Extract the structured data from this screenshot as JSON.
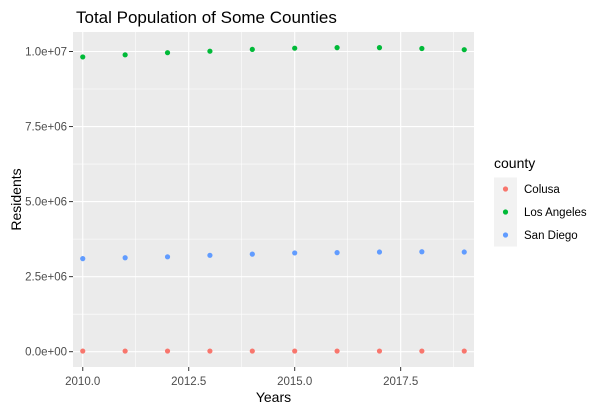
{
  "chart_data": {
    "type": "scatter",
    "title": "Total Population of Some Counties",
    "xlabel": "Years",
    "ylabel": "Residents",
    "xlim": [
      2009.77,
      2019.23
    ],
    "ylim": [
      -510000,
      10650000
    ],
    "x_ticks": [
      2010,
      2012.5,
      2015,
      2017.5
    ],
    "x_tick_labels": [
      "2010.0",
      "2012.5",
      "2015.0",
      "2017.5"
    ],
    "y_ticks": [
      0,
      2500000,
      5000000,
      7500000,
      10000000
    ],
    "y_tick_labels": [
      "0.0e+00",
      "2.5e+06",
      "5.0e+06",
      "7.5e+06",
      "1.0e+07"
    ],
    "grid": true,
    "legend_title": "county",
    "legend_position": "right",
    "x": [
      2010,
      2011,
      2012,
      2013,
      2014,
      2015,
      2016,
      2017,
      2018,
      2019
    ],
    "series": [
      {
        "name": "Colusa",
        "color": "#F8766D",
        "values": [
          21500,
          21400,
          21500,
          21400,
          21400,
          21500,
          21600,
          21600,
          21500,
          21500
        ]
      },
      {
        "name": "Los Angeles",
        "color": "#00BA38",
        "values": [
          9820000,
          9890000,
          9960000,
          10010000,
          10070000,
          10110000,
          10130000,
          10130000,
          10100000,
          10060000
        ]
      },
      {
        "name": "San Diego",
        "color": "#619CFF",
        "values": [
          3100000,
          3130000,
          3160000,
          3210000,
          3250000,
          3290000,
          3300000,
          3320000,
          3330000,
          3320000
        ]
      }
    ]
  }
}
